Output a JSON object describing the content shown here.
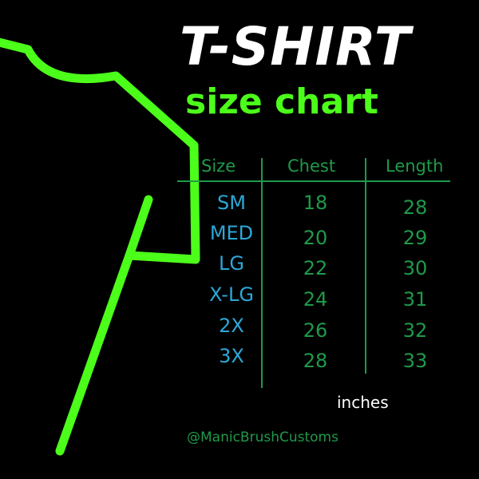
{
  "title": "T-SHIRT",
  "subtitle": "size chart",
  "table": {
    "headers": [
      "Size",
      "Chest",
      "Length"
    ],
    "rows": [
      {
        "size": "SM",
        "chest": "18",
        "length": "28"
      },
      {
        "size": "MED",
        "chest": "20",
        "length": "29"
      },
      {
        "size": "LG",
        "chest": "22",
        "length": "30"
      },
      {
        "size": "X-LG",
        "chest": "24",
        "length": "31"
      },
      {
        "size": "2X",
        "chest": "26",
        "length": "32"
      },
      {
        "size": "3X",
        "chest": "28",
        "length": "33"
      }
    ]
  },
  "unit": "inches",
  "handle": "@ManicBrushCustoms",
  "colors": {
    "background": "#000000",
    "shirt_outline": "#4cff1a",
    "size_text": "#2ba8d8",
    "table_text": "#1f9a4a",
    "title": "#ffffff"
  },
  "icons": [
    "t-shirt-outline"
  ]
}
